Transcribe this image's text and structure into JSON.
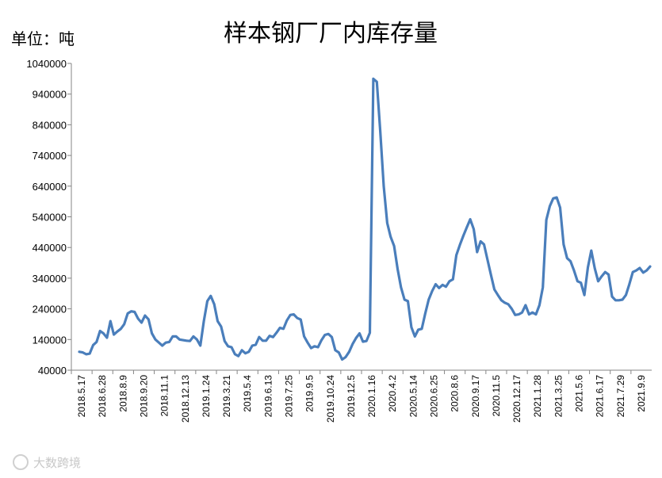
{
  "chart_data": {
    "type": "line",
    "title": "样本钢厂厂内库存量",
    "unit_label": "单位：吨",
    "ylim": [
      40000,
      1040000
    ],
    "yticks": [
      40000,
      140000,
      240000,
      340000,
      440000,
      540000,
      640000,
      740000,
      840000,
      940000,
      1040000
    ],
    "x_tick_labels": [
      "2018.5.17",
      "2018.6.28",
      "2018.8.9",
      "2018.9.20",
      "2018.11.1",
      "2018.12.13",
      "2019.1.24",
      "2019.3.21",
      "2019.5.4",
      "2019.6.13",
      "2019.7.25",
      "2019.9.5",
      "2019.10.24",
      "2019.12.5",
      "2020.1.16",
      "2020.4.2",
      "2020.5.14",
      "2020.6.25",
      "2020.8.6",
      "2020.9.17",
      "2020.11.5",
      "2020.12.17",
      "2021.1.28",
      "2021.3.25",
      "2021.5.6",
      "2021.6.17",
      "2021.7.29",
      "2021.9.9"
    ],
    "grid": false,
    "legend": "none",
    "line_color": "#4a7ebb",
    "series": [
      {
        "values": [
          100000,
          98000,
          92000,
          94000,
          122000,
          132000,
          168000,
          160000,
          146000,
          200000,
          156000,
          166000,
          175000,
          190000,
          225000,
          232000,
          230000,
          208000,
          195000,
          218000,
          206000,
          160000,
          140000,
          130000,
          120000,
          130000,
          132000,
          150000,
          150000,
          140000,
          138000,
          136000,
          135000,
          150000,
          140000,
          120000,
          200000,
          265000,
          282000,
          255000,
          200000,
          182000,
          135000,
          118000,
          115000,
          92000,
          86000,
          105000,
          95000,
          100000,
          120000,
          123000,
          148000,
          136000,
          136000,
          152000,
          148000,
          162000,
          178000,
          175000,
          202000,
          220000,
          222000,
          210000,
          205000,
          150000,
          130000,
          112000,
          118000,
          115000,
          138000,
          155000,
          158000,
          148000,
          105000,
          98000,
          75000,
          83000,
          100000,
          125000,
          145000,
          160000,
          133000,
          135000,
          162000,
          990000,
          980000,
          820000,
          640000,
          520000,
          475000,
          445000,
          370000,
          310000,
          270000,
          265000,
          180000,
          150000,
          172000,
          175000,
          225000,
          270000,
          298000,
          320000,
          308000,
          318000,
          312000,
          330000,
          336000,
          415000,
          448000,
          478000,
          505000,
          532000,
          500000,
          425000,
          460000,
          450000,
          400000,
          350000,
          303000,
          285000,
          268000,
          260000,
          255000,
          240000,
          220000,
          222000,
          228000,
          252000,
          222000,
          228000,
          222000,
          252000,
          310000,
          530000,
          575000,
          600000,
          603000,
          570000,
          450000,
          405000,
          395000,
          365000,
          330000,
          325000,
          285000,
          375000,
          430000,
          372000,
          330000,
          346000,
          360000,
          352000,
          280000,
          268000,
          268000,
          270000,
          285000,
          320000,
          360000,
          365000,
          373000,
          358000,
          365000,
          378000
        ]
      }
    ]
  },
  "watermark": "大数跨境"
}
